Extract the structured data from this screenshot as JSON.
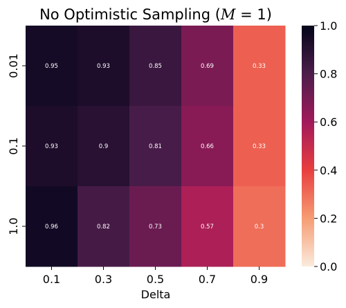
{
  "chart_data": {
    "type": "heatmap",
    "title_prefix": "No Optimistic Sampling (",
    "title_math": "M",
    "title_suffix": " = 1)",
    "xlabel": "Delta",
    "ylabel": "",
    "x_categories": [
      "0.1",
      "0.3",
      "0.5",
      "0.7",
      "0.9"
    ],
    "y_categories": [
      "0.01",
      "0.1",
      "1.0"
    ],
    "values": [
      [
        0.95,
        0.93,
        0.85,
        0.69,
        0.33
      ],
      [
        0.93,
        0.9,
        0.81,
        0.66,
        0.33
      ],
      [
        0.96,
        0.82,
        0.73,
        0.57,
        0.3
      ]
    ],
    "value_labels": [
      [
        "0.95",
        "0.93",
        "0.85",
        "0.69",
        "0.33"
      ],
      [
        "0.93",
        "0.9",
        "0.81",
        "0.66",
        "0.33"
      ],
      [
        "0.96",
        "0.82",
        "0.73",
        "0.57",
        "0.3"
      ]
    ],
    "colorbar": {
      "range": [
        0.0,
        1.0
      ],
      "ticks": [
        "0.0",
        "0.2",
        "0.4",
        "0.6",
        "0.8",
        "1.0"
      ],
      "colormap": "rocket_r"
    }
  }
}
